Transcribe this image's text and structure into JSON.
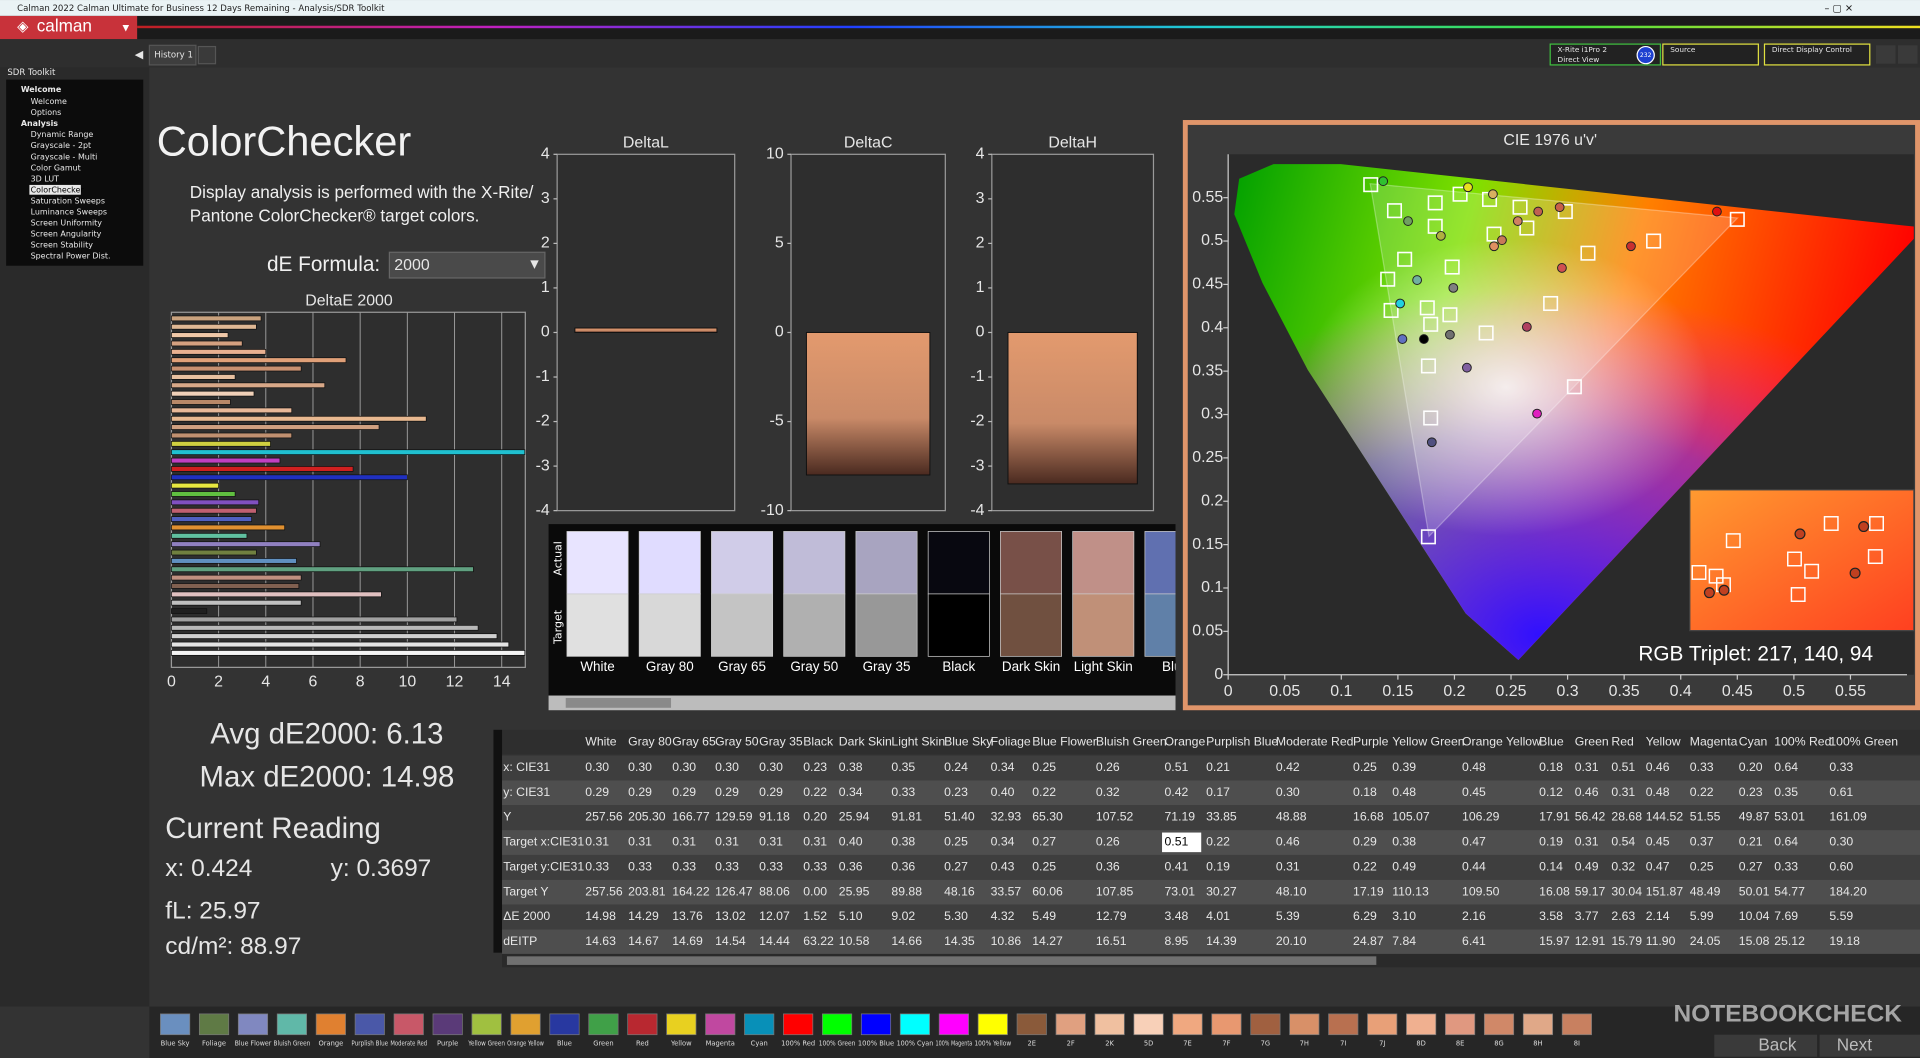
{
  "window": {
    "title": "Calman 2022 Calman Ultimate for Business 12 Days Remaining - Analysis/SDR Toolkit",
    "logo": "calman",
    "tab": "History 1"
  },
  "devices": {
    "meter": "X-Rite i1Pro 2",
    "mode": "Direct View",
    "badge": "232",
    "source": "Source",
    "control": "Direct Display Control"
  },
  "sidebar": {
    "title": "SDR Toolkit",
    "selected": 9,
    "items": [
      {
        "label": "Welcome",
        "level": 0
      },
      {
        "label": "Welcome",
        "level": 1
      },
      {
        "label": "Options",
        "level": 1
      },
      {
        "label": "Analysis",
        "level": 0
      },
      {
        "label": "Dynamic Range",
        "level": 1
      },
      {
        "label": "Grayscale - 2pt",
        "level": 1
      },
      {
        "label": "Grayscale - Multi",
        "level": 1
      },
      {
        "label": "Color Gamut",
        "level": 1
      },
      {
        "label": "3D LUT",
        "level": 1
      },
      {
        "label": "ColorChecker",
        "level": 1
      },
      {
        "label": "Saturation Sweeps",
        "level": 1
      },
      {
        "label": "Luminance Sweeps",
        "level": 1
      },
      {
        "label": "Screen Uniformity",
        "level": 1
      },
      {
        "label": "Screen Angularity",
        "level": 1
      },
      {
        "label": "Screen Stability",
        "level": 1
      },
      {
        "label": "Spectral Power Dist.",
        "level": 1
      }
    ]
  },
  "page": {
    "heading": "ColorChecker",
    "description": [
      "Display analysis is performed with the X-Rite/",
      "Pantone ColorChecker® target colors."
    ],
    "formula_label": "dE Formula:",
    "formula": "2000"
  },
  "deltae_chart": {
    "type": "bar",
    "orientation": "horizontal",
    "title": "DeltaE 2000",
    "xlim": [
      0,
      15
    ],
    "xticks": [
      0,
      2,
      4,
      6,
      8,
      10,
      12,
      14
    ],
    "grid": true,
    "values": [
      3.8,
      3.6,
      2.4,
      3.0,
      4.0,
      7.4,
      5.5,
      2.7,
      6.5,
      3.5,
      2.5,
      5.1,
      10.8,
      8.8,
      5.1,
      4.2,
      14.98,
      4.6,
      7.7,
      10.0,
      2.0,
      2.7,
      3.7,
      3.6,
      3.4,
      4.8,
      3.2,
      6.3,
      3.6,
      5.3,
      12.8,
      5.5,
      5.4,
      8.9,
      5.5,
      1.5,
      12.1,
      13.0,
      13.8,
      14.3,
      14.98
    ],
    "colors": [
      "#c9a27e",
      "#e0b894",
      "#f0c8a8",
      "#d4a080",
      "#e8b090",
      "#e0a078",
      "#c89070",
      "#e8c0a0",
      "#d8a888",
      "#f0d0b8",
      "#b88868",
      "#e8b898",
      "#e8b890",
      "#d0a080",
      "#c09070",
      "#d0d040",
      "#20c0d0",
      "#c040c0",
      "#d02020",
      "#2030c0",
      "#e8e840",
      "#60c040",
      "#8050c0",
      "#c06070",
      "#5060c0",
      "#e09030",
      "#60c0a0",
      "#9080c0",
      "#708040",
      "#6090c0",
      "#60a080",
      "#c09080",
      "#806050",
      "#e0c0c0",
      "#c0c0c0",
      "#202020",
      "#a0a0a0",
      "#b8b8b8",
      "#d0d0d0",
      "#e4e4e4",
      "#f4f4f4"
    ]
  },
  "delta_charts": [
    {
      "type": "bar",
      "title": "DeltaL",
      "value": 0.1,
      "ylim": [
        -4,
        4
      ],
      "yticks": [
        -4,
        -3,
        -2,
        -1,
        0,
        1,
        2,
        3,
        4
      ]
    },
    {
      "type": "bar",
      "title": "DeltaC",
      "value": -8.0,
      "ylim": [
        -10,
        10
      ],
      "yticks": [
        -10,
        -5,
        0,
        5,
        10
      ]
    },
    {
      "type": "bar",
      "title": "DeltaH",
      "value": -3.4,
      "ylim": [
        -4,
        4
      ],
      "yticks": [
        -4,
        -3,
        -2,
        -1,
        0,
        1,
        2,
        3,
        4
      ]
    }
  ],
  "swatches": {
    "actual_label": "Actual",
    "target_label": "Target",
    "items": [
      {
        "name": "White",
        "actual": "#e8e4ff",
        "target": "#e0e0e0"
      },
      {
        "name": "Gray 80",
        "actual": "#e0dcff",
        "target": "#d8d8d8"
      },
      {
        "name": "Gray 65",
        "actual": "#d0cce8",
        "target": "#c4c4c4"
      },
      {
        "name": "Gray 50",
        "actual": "#c0bcd8",
        "target": "#b0b0b0"
      },
      {
        "name": "Gray 35",
        "actual": "#a8a4c0",
        "target": "#989898"
      },
      {
        "name": "Black",
        "actual": "#080810",
        "target": "#000000"
      },
      {
        "name": "Dark Skin",
        "actual": "#785048",
        "target": "#705040"
      },
      {
        "name": "Light Skin",
        "actual": "#c09088",
        "target": "#c09078"
      },
      {
        "name": "Blue",
        "actual": "#6070b0",
        "target": "#6080a8"
      }
    ]
  },
  "cie_chart": {
    "type": "scatter",
    "title": "CIE 1976 u'v'",
    "xlim": [
      0,
      0.6
    ],
    "ylim": [
      0,
      0.6
    ],
    "xticks": [
      0,
      0.05,
      0.1,
      0.15,
      0.2,
      0.25,
      0.3,
      0.35,
      0.4,
      0.45,
      0.5,
      0.55
    ],
    "yticks": [
      0,
      0.05,
      0.1,
      0.15,
      0.2,
      0.25,
      0.3,
      0.35,
      0.4,
      0.45,
      0.5,
      0.55
    ],
    "targets": {
      "u": [
        0.126,
        0.147,
        0.183,
        0.205,
        0.231,
        0.258,
        0.298,
        0.376,
        0.45,
        0.318,
        0.285,
        0.306,
        0.228,
        0.177,
        0.179,
        0.177,
        0.179,
        0.196,
        0.176,
        0.144,
        0.141,
        0.156,
        0.183,
        0.198,
        0.235,
        0.264
      ],
      "v": [
        0.565,
        0.535,
        0.544,
        0.554,
        0.548,
        0.539,
        0.534,
        0.5,
        0.525,
        0.486,
        0.428,
        0.332,
        0.394,
        0.159,
        0.296,
        0.356,
        0.404,
        0.415,
        0.423,
        0.42,
        0.456,
        0.479,
        0.517,
        0.47,
        0.508,
        0.515
      ]
    },
    "measured": {
      "u": [
        0.137,
        0.212,
        0.159,
        0.188,
        0.234,
        0.235,
        0.242,
        0.256,
        0.274,
        0.293,
        0.295,
        0.356,
        0.432,
        0.264,
        0.273,
        0.211,
        0.199,
        0.167,
        0.152,
        0.173,
        0.18,
        0.196,
        0.154
      ],
      "v": [
        0.569,
        0.562,
        0.523,
        0.506,
        0.554,
        0.494,
        0.501,
        0.523,
        0.534,
        0.539,
        0.469,
        0.494,
        0.534,
        0.401,
        0.301,
        0.354,
        0.446,
        0.455,
        0.428,
        0.387,
        0.268,
        0.392,
        0.387
      ],
      "colors": [
        "#30c030",
        "#e8e020",
        "#70a060",
        "#b0b040",
        "#d8b060",
        "#e09060",
        "#c87858",
        "#d08060",
        "#c06050",
        "#c86048",
        "#d05050",
        "#c83030",
        "#e01010",
        "#b04060",
        "#e020c0",
        "#8060a0",
        "#808080",
        "#70b0a0",
        "#20d0e0",
        "#000000",
        "#505080",
        "#707070",
        "#6070c0"
      ]
    }
  },
  "rgb_triplet": "RGB Triplet: 217, 140, 94",
  "stats": {
    "avg": "Avg dE2000: 6.13",
    "max": "Max dE2000: 14.98",
    "current": "Current Reading",
    "x": "x: 0.424",
    "y": "y: 0.3697",
    "fl": "fL: 25.97",
    "cdm2": "cd/m²: 88.97"
  },
  "table": {
    "highlight": [
      3,
      12
    ],
    "columns": [
      "White",
      "Gray 80",
      "Gray 65",
      "Gray 50",
      "Gray 35",
      "Black",
      "Dark Skin",
      "Light Skin",
      "Blue Sky",
      "Foliage",
      "Blue Flower",
      "Bluish Green",
      "Orange",
      "Purplish Blue",
      "Moderate Red",
      "Purple",
      "Yellow Green",
      "Orange Yellow",
      "Blue",
      "Green",
      "Red",
      "Yellow",
      "Magenta",
      "Cyan",
      "100% Red",
      "100% Green"
    ],
    "rows": [
      {
        "label": "x: CIE31",
        "cells": [
          "0.30",
          "0.30",
          "0.30",
          "0.30",
          "0.30",
          "0.23",
          "0.38",
          "0.35",
          "0.24",
          "0.34",
          "0.25",
          "0.26",
          "0.51",
          "0.21",
          "0.42",
          "0.25",
          "0.39",
          "0.48",
          "0.18",
          "0.31",
          "0.51",
          "0.46",
          "0.33",
          "0.20",
          "0.64",
          "0.33"
        ]
      },
      {
        "label": "y: CIE31",
        "cells": [
          "0.29",
          "0.29",
          "0.29",
          "0.29",
          "0.29",
          "0.22",
          "0.34",
          "0.33",
          "0.23",
          "0.40",
          "0.22",
          "0.32",
          "0.42",
          "0.17",
          "0.30",
          "0.18",
          "0.48",
          "0.45",
          "0.12",
          "0.46",
          "0.31",
          "0.48",
          "0.22",
          "0.23",
          "0.35",
          "0.61"
        ]
      },
      {
        "label": "Y",
        "cells": [
          "257.56",
          "205.30",
          "166.77",
          "129.59",
          "91.18",
          "0.20",
          "25.94",
          "91.81",
          "51.40",
          "32.93",
          "65.30",
          "107.52",
          "71.19",
          "33.85",
          "48.88",
          "16.68",
          "105.07",
          "106.29",
          "17.91",
          "56.42",
          "28.68",
          "144.52",
          "51.55",
          "49.87",
          "53.01",
          "161.09"
        ]
      },
      {
        "label": "Target x:CIE31",
        "cells": [
          "0.31",
          "0.31",
          "0.31",
          "0.31",
          "0.31",
          "0.31",
          "0.40",
          "0.38",
          "0.25",
          "0.34",
          "0.27",
          "0.26",
          "0.51",
          "0.22",
          "0.46",
          "0.29",
          "0.38",
          "0.47",
          "0.19",
          "0.31",
          "0.54",
          "0.45",
          "0.37",
          "0.21",
          "0.64",
          "0.30"
        ]
      },
      {
        "label": "Target y:CIE31",
        "cells": [
          "0.33",
          "0.33",
          "0.33",
          "0.33",
          "0.33",
          "0.33",
          "0.36",
          "0.36",
          "0.27",
          "0.43",
          "0.25",
          "0.36",
          "0.41",
          "0.19",
          "0.31",
          "0.22",
          "0.49",
          "0.44",
          "0.14",
          "0.49",
          "0.32",
          "0.47",
          "0.25",
          "0.27",
          "0.33",
          "0.60"
        ]
      },
      {
        "label": "Target Y",
        "cells": [
          "257.56",
          "203.81",
          "164.22",
          "126.47",
          "88.06",
          "0.00",
          "25.95",
          "89.88",
          "48.16",
          "33.57",
          "60.06",
          "107.85",
          "73.01",
          "30.27",
          "48.10",
          "17.19",
          "110.13",
          "109.50",
          "16.08",
          "59.17",
          "30.04",
          "151.87",
          "48.49",
          "50.01",
          "54.77",
          "184.20"
        ]
      },
      {
        "label": "ΔE 2000",
        "cells": [
          "14.98",
          "14.29",
          "13.76",
          "13.02",
          "12.07",
          "1.52",
          "5.10",
          "9.02",
          "5.30",
          "4.32",
          "5.49",
          "12.79",
          "3.48",
          "4.01",
          "5.39",
          "6.29",
          "3.10",
          "2.16",
          "3.58",
          "3.77",
          "2.63",
          "2.14",
          "5.99",
          "10.04",
          "7.69",
          "5.59"
        ]
      },
      {
        "label": "dEITP",
        "cells": [
          "14.63",
          "14.67",
          "14.69",
          "14.54",
          "14.44",
          "63.22",
          "10.58",
          "14.66",
          "14.35",
          "10.86",
          "14.27",
          "16.51",
          "8.95",
          "14.39",
          "20.10",
          "24.87",
          "7.84",
          "6.41",
          "15.97",
          "12.91",
          "15.79",
          "11.90",
          "24.05",
          "15.08",
          "25.12",
          "19.18"
        ]
      }
    ]
  },
  "bottom_bar": {
    "back": "Back",
    "next": "Next",
    "items": [
      {
        "label": "Blue Sky",
        "color": "#6a8fbf"
      },
      {
        "label": "Foliage",
        "color": "#5f7a45"
      },
      {
        "label": "Blue Flower",
        "color": "#8088c0"
      },
      {
        "label": "Bluish Green",
        "color": "#60b8a8"
      },
      {
        "label": "Orange",
        "color": "#e08030"
      },
      {
        "label": "Purplish Blue",
        "color": "#4a58a8"
      },
      {
        "label": "Moderate Red",
        "color": "#c85868"
      },
      {
        "label": "Purple",
        "color": "#5a3a78"
      },
      {
        "label": "Yellow Green",
        "color": "#a0c040"
      },
      {
        "label": "Orange Yellow",
        "color": "#e0a030"
      },
      {
        "label": "Blue",
        "color": "#2838a0"
      },
      {
        "label": "Green",
        "color": "#40a048"
      },
      {
        "label": "Red",
        "color": "#b82830"
      },
      {
        "label": "Yellow",
        "color": "#e8d020"
      },
      {
        "label": "Magenta",
        "color": "#c048a0"
      },
      {
        "label": "Cyan",
        "color": "#0890b8"
      },
      {
        "label": "100% Red",
        "color": "#ff0000"
      },
      {
        "label": "100% Green",
        "color": "#00ff00"
      },
      {
        "label": "100% Blue",
        "color": "#0000ff"
      },
      {
        "label": "100% Cyan",
        "color": "#00ffff"
      },
      {
        "label": "100% Magenta",
        "color": "#ff00ff"
      },
      {
        "label": "100% Yellow",
        "color": "#ffff00"
      },
      {
        "label": "2E",
        "color": "#8a5a3a"
      },
      {
        "label": "2F",
        "color": "#e0a080"
      },
      {
        "label": "2K",
        "color": "#f0c0a0"
      },
      {
        "label": "5D",
        "color": "#f8d0b8"
      },
      {
        "label": "7E",
        "color": "#f0a880"
      },
      {
        "label": "7F",
        "color": "#e89870"
      },
      {
        "label": "7G",
        "color": "#a06040"
      },
      {
        "label": "7H",
        "color": "#d89068"
      },
      {
        "label": "7I",
        "color": "#b87050"
      },
      {
        "label": "7J",
        "color": "#e8a078"
      },
      {
        "label": "8D",
        "color": "#f0b090"
      },
      {
        "label": "8E",
        "color": "#e09880"
      },
      {
        "label": "8G",
        "color": "#d08868"
      },
      {
        "label": "8H",
        "color": "#e0a888"
      },
      {
        "label": "8I",
        "color": "#c88060"
      }
    ]
  },
  "watermark": "NOTEBOOKCHECK"
}
